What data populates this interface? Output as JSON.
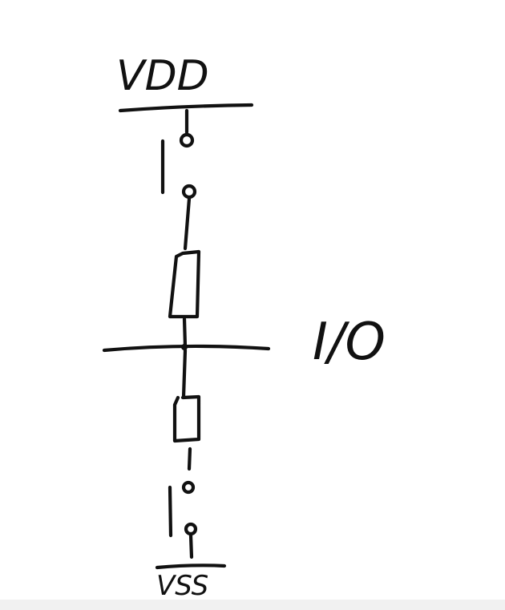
{
  "labels": {
    "top_rail": "VDD",
    "bottom_rail": "VSS",
    "node": "I/O"
  },
  "colors": {
    "ink": "#111111",
    "background": "#ffffff",
    "footer_strip": "#f1f1f1"
  }
}
